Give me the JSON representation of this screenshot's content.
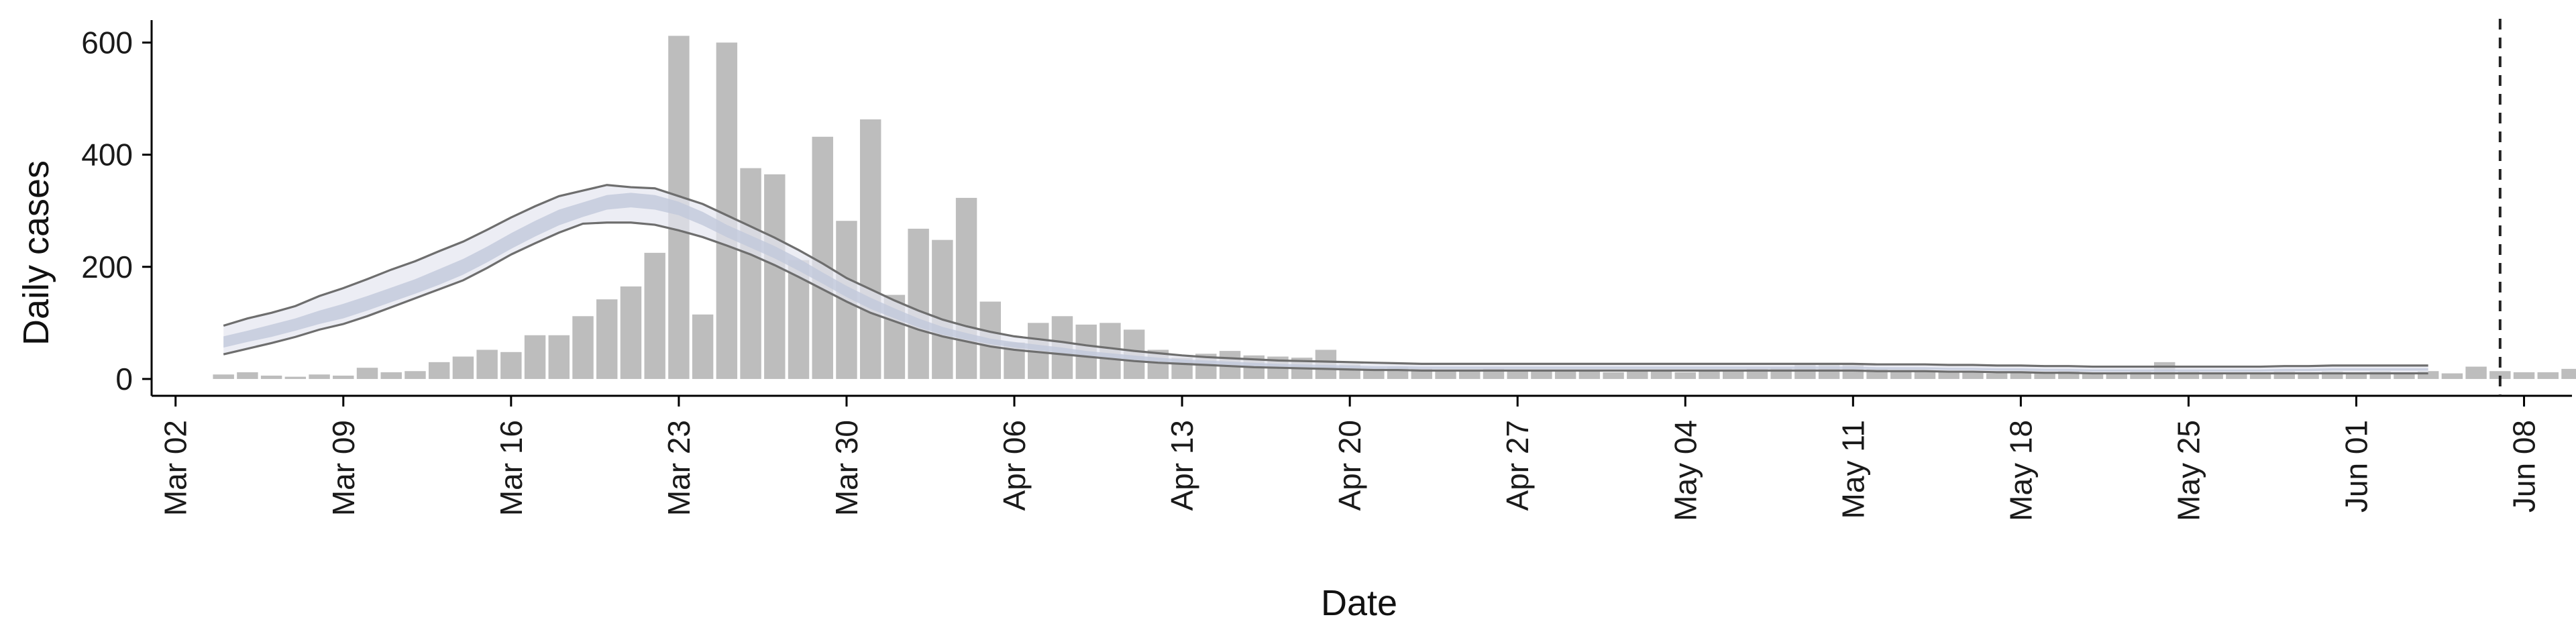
{
  "chart_data": {
    "type": "bar",
    "title": "",
    "xlabel": "Date",
    "ylabel": "Daily cases",
    "x_start_date": "2020-03-04",
    "xlim": [
      "2020-03-01",
      "2020-06-10"
    ],
    "ylim": [
      -30,
      640
    ],
    "y_ticks": [
      0,
      200,
      400,
      600
    ],
    "x_ticks": [
      {
        "date": "2020-03-02",
        "label": "Mar 02"
      },
      {
        "date": "2020-03-09",
        "label": "Mar 09"
      },
      {
        "date": "2020-03-16",
        "label": "Mar 16"
      },
      {
        "date": "2020-03-23",
        "label": "Mar 23"
      },
      {
        "date": "2020-03-30",
        "label": "Mar 30"
      },
      {
        "date": "2020-04-06",
        "label": "Apr 06"
      },
      {
        "date": "2020-04-13",
        "label": "Apr 13"
      },
      {
        "date": "2020-04-20",
        "label": "Apr 20"
      },
      {
        "date": "2020-04-27",
        "label": "Apr 27"
      },
      {
        "date": "2020-05-04",
        "label": "May 04"
      },
      {
        "date": "2020-05-11",
        "label": "May 11"
      },
      {
        "date": "2020-05-18",
        "label": "May 18"
      },
      {
        "date": "2020-05-25",
        "label": "May 25"
      },
      {
        "date": "2020-06-01",
        "label": "Jun 01"
      },
      {
        "date": "2020-06-08",
        "label": "Jun 08"
      }
    ],
    "series": [
      {
        "values": [
          8,
          12,
          6,
          4,
          8,
          6,
          20,
          12,
          14,
          30,
          40,
          52,
          48,
          78,
          78,
          112,
          142,
          165,
          225,
          612,
          115,
          600,
          376,
          365,
          212,
          432,
          282,
          463,
          150,
          268,
          248,
          323,
          138,
          65,
          100,
          112,
          97,
          100,
          88,
          52,
          38,
          45,
          50,
          42,
          40,
          38,
          52,
          26,
          20,
          22,
          18,
          14,
          14,
          18,
          16,
          15,
          14,
          14,
          12,
          14,
          16,
          12,
          16,
          15,
          18,
          20,
          26,
          25,
          25,
          18,
          16,
          14,
          12,
          12,
          10,
          10,
          10,
          14,
          12,
          12,
          14,
          30,
          14,
          12,
          12,
          10,
          14,
          12,
          14,
          10,
          14,
          12,
          14,
          10,
          22,
          14,
          12,
          12,
          18,
          10,
          12,
          12,
          10
        ],
        "color": "#bdbdbd"
      },
      {
        "median": [
          66,
          76,
          86,
          97,
          110,
          121,
          135,
          150,
          165,
          182,
          200,
          222,
          246,
          268,
          288,
          302,
          315,
          319,
          315,
          304,
          286,
          264,
          245,
          226,
          204,
          180,
          156,
          135,
          117,
          100,
          86,
          76,
          67,
          61,
          56,
          51,
          46,
          42,
          38,
          35,
          32,
          30,
          28,
          26,
          25,
          24,
          23,
          22,
          21,
          21,
          20,
          20,
          20,
          20,
          20,
          20,
          20,
          20,
          20,
          20,
          20,
          20,
          20,
          20,
          20,
          20,
          20,
          20,
          20,
          19,
          19,
          19,
          18,
          18,
          17,
          17,
          16,
          16,
          15,
          15,
          15,
          15,
          15,
          15,
          15,
          15,
          16,
          16,
          17,
          17,
          17,
          17,
          17
        ],
        "inner_low": [
          56,
          66,
          75,
          86,
          98,
          108,
          122,
          137,
          152,
          168,
          186,
          208,
          232,
          254,
          274,
          289,
          302,
          306,
          302,
          292,
          274,
          253,
          234,
          215,
          193,
          170,
          146,
          125,
          108,
          92,
          79,
          70,
          62,
          56,
          51,
          46,
          42,
          38,
          34,
          31,
          29,
          27,
          25,
          23,
          22,
          21,
          20,
          19,
          18,
          18,
          18,
          18,
          18,
          18,
          18,
          18,
          18,
          18,
          18,
          18,
          18,
          18,
          18,
          18,
          18,
          18,
          18,
          18,
          18,
          17,
          17,
          17,
          16,
          16,
          15,
          15,
          14,
          14,
          13,
          13,
          13,
          13,
          13,
          13,
          13,
          13,
          14,
          14,
          15,
          15,
          15,
          15,
          15
        ],
        "inner_high": [
          76,
          86,
          97,
          108,
          122,
          134,
          148,
          163,
          178,
          196,
          214,
          236,
          260,
          282,
          302,
          315,
          328,
          332,
          328,
          316,
          298,
          275,
          256,
          237,
          215,
          190,
          166,
          145,
          126,
          108,
          93,
          82,
          72,
          66,
          61,
          56,
          50,
          46,
          42,
          38,
          35,
          33,
          31,
          29,
          27,
          26,
          25,
          24,
          23,
          23,
          22,
          22,
          22,
          22,
          22,
          22,
          22,
          22,
          22,
          22,
          22,
          22,
          22,
          22,
          22,
          22,
          22,
          22,
          22,
          21,
          21,
          21,
          20,
          20,
          19,
          19,
          18,
          18,
          17,
          17,
          17,
          17,
          17,
          17,
          17,
          17,
          18,
          18,
          19,
          19,
          19,
          19,
          19
        ],
        "outer_low": [
          44,
          54,
          64,
          75,
          88,
          98,
          112,
          128,
          144,
          160,
          176,
          198,
          222,
          242,
          261,
          277,
          279,
          279,
          275,
          265,
          253,
          238,
          222,
          203,
          182,
          160,
          138,
          118,
          103,
          88,
          76,
          67,
          58,
          52,
          48,
          44,
          40,
          36,
          32,
          29,
          27,
          25,
          23,
          21,
          20,
          19,
          18,
          17,
          16,
          16,
          15,
          15,
          15,
          15,
          15,
          15,
          15,
          15,
          15,
          15,
          15,
          15,
          15,
          15,
          15,
          15,
          15,
          15,
          15,
          14,
          14,
          14,
          13,
          13,
          12,
          12,
          11,
          11,
          10,
          10,
          10,
          10,
          10,
          10,
          10,
          10,
          10,
          10,
          10,
          10,
          10,
          10,
          10
        ],
        "outer_high": [
          95,
          108,
          118,
          130,
          148,
          162,
          178,
          195,
          210,
          228,
          245,
          266,
          288,
          308,
          326,
          336,
          346,
          342,
          340,
          326,
          312,
          292,
          272,
          252,
          230,
          206,
          180,
          160,
          140,
          122,
          106,
          94,
          84,
          76,
          71,
          66,
          60,
          55,
          50,
          46,
          42,
          39,
          37,
          35,
          33,
          32,
          31,
          30,
          29,
          28,
          27,
          27,
          27,
          27,
          27,
          27,
          27,
          27,
          27,
          27,
          27,
          27,
          27,
          27,
          27,
          27,
          27,
          27,
          27,
          26,
          26,
          26,
          25,
          25,
          24,
          24,
          23,
          23,
          22,
          22,
          22,
          22,
          22,
          22,
          22,
          22,
          23,
          23,
          24,
          24,
          24,
          24,
          24
        ],
        "band_colors": {
          "outer": "#e4e6ef",
          "inner": "#c2c8db",
          "edge": "#6e6e6e"
        }
      }
    ],
    "vline_date": "2020-06-07",
    "grid": false,
    "legend": "none"
  }
}
